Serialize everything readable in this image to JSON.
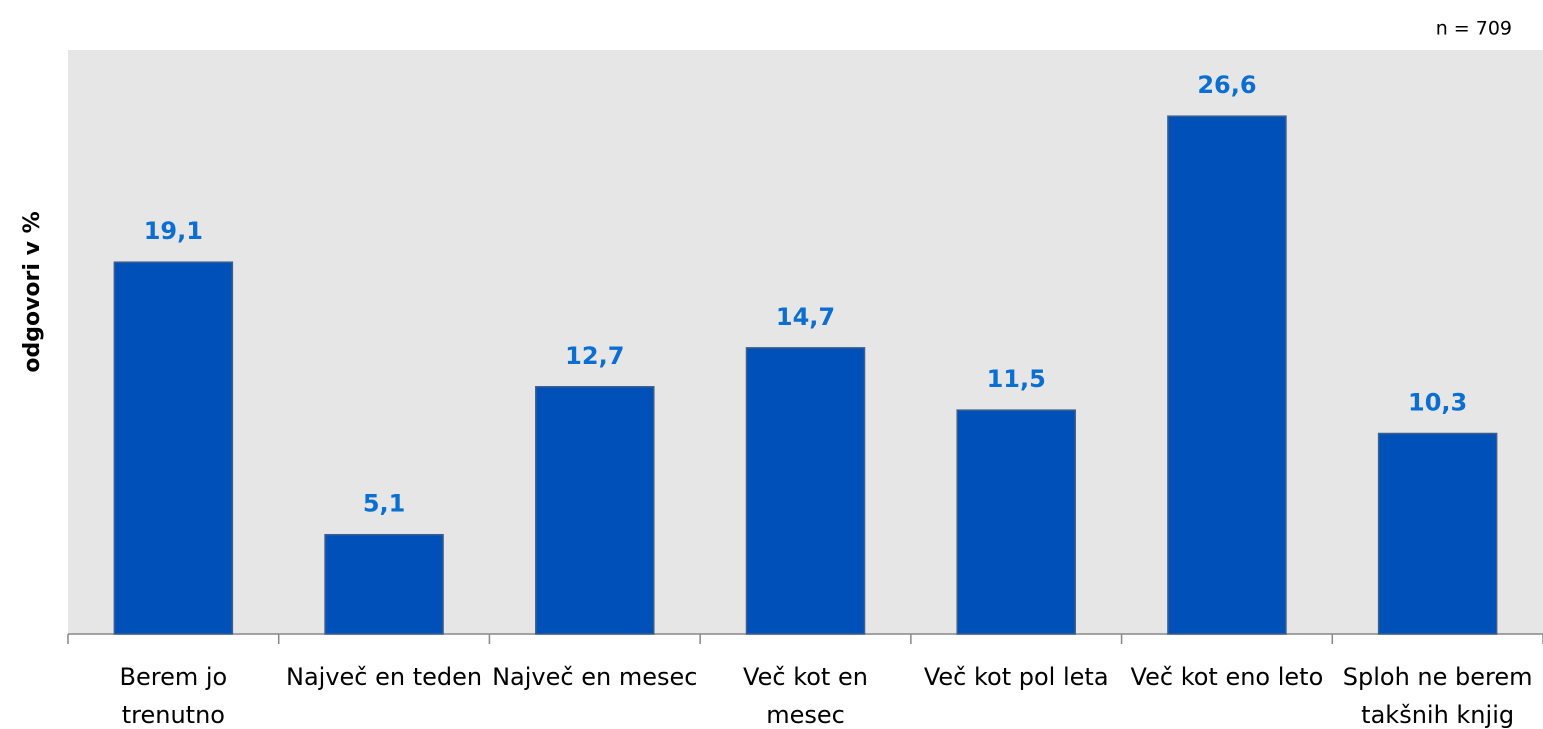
{
  "chart_data": {
    "type": "bar",
    "note": "n = 709",
    "ylabel": "odgovori v %",
    "categories": [
      "Berem jo trenutno",
      "Največ en teden",
      "Največ en mesec",
      "Več kot en mesec",
      "Več kot pol leta",
      "Več kot eno leto",
      "Sploh ne berem takšnih knjig"
    ],
    "values": [
      19.1,
      5.1,
      12.7,
      14.7,
      11.5,
      26.6,
      10.3
    ],
    "value_labels": [
      "19,1",
      "5,1",
      "12,7",
      "14,7",
      "11,5",
      "26,6",
      "10,3"
    ],
    "color": "#0050b9",
    "ylim": [
      0,
      30
    ]
  }
}
